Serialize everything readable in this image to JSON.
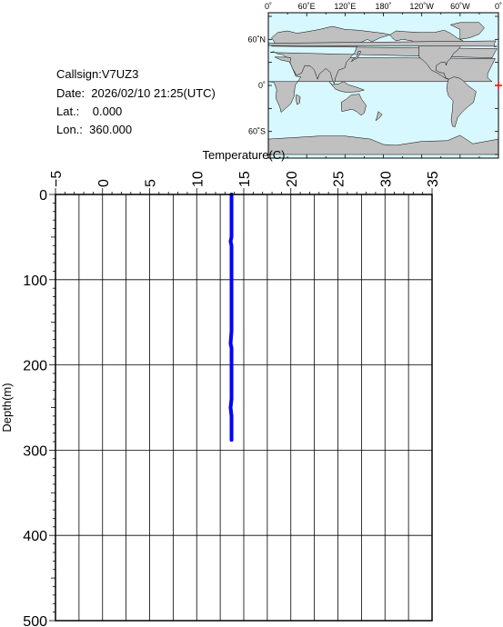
{
  "info": {
    "callsign_line": "Callsign:V7UZ3",
    "date_line": "Date:  2026/02/10 21:25(UTC)",
    "lat_line": "Lat.:    0.000",
    "lon_line": "Lon.:  360.000"
  },
  "map": {
    "lon_labels": [
      "0˚",
      "60˚E",
      "120˚E",
      "180˚",
      "120˚W",
      "60˚W",
      "0˚"
    ],
    "lat_labels": [
      "60˚N",
      "0˚",
      "60˚S"
    ],
    "ocean_color": "#d8f8ff",
    "land_color": "#c0c0c0",
    "marker": {
      "lat": 0.0,
      "lon": 360.0,
      "color": "#ff0000"
    }
  },
  "chart_data": {
    "type": "line",
    "xlabel": "Temperature(C)",
    "ylabel": "Depth(m)",
    "xlim": [
      -5,
      35
    ],
    "ylim": [
      0,
      500
    ],
    "x_ticks": [
      "−5",
      "0",
      "5",
      "10",
      "15",
      "20",
      "25",
      "30",
      "35"
    ],
    "y_ticks": [
      "0",
      "100",
      "200",
      "300",
      "400",
      "500"
    ],
    "grid": true,
    "series": [
      {
        "color": "#0000ff",
        "depth": [
          0,
          10,
          20,
          30,
          40,
          50,
          55,
          60,
          70,
          80,
          100,
          120,
          140,
          160,
          175,
          180,
          200,
          220,
          240,
          250,
          260,
          270,
          280,
          288
        ],
        "temperature": [
          13.7,
          13.7,
          13.7,
          13.7,
          13.7,
          13.7,
          13.6,
          13.7,
          13.7,
          13.7,
          13.7,
          13.7,
          13.7,
          13.7,
          13.6,
          13.7,
          13.7,
          13.7,
          13.7,
          13.6,
          13.7,
          13.7,
          13.7,
          13.7
        ]
      }
    ]
  }
}
